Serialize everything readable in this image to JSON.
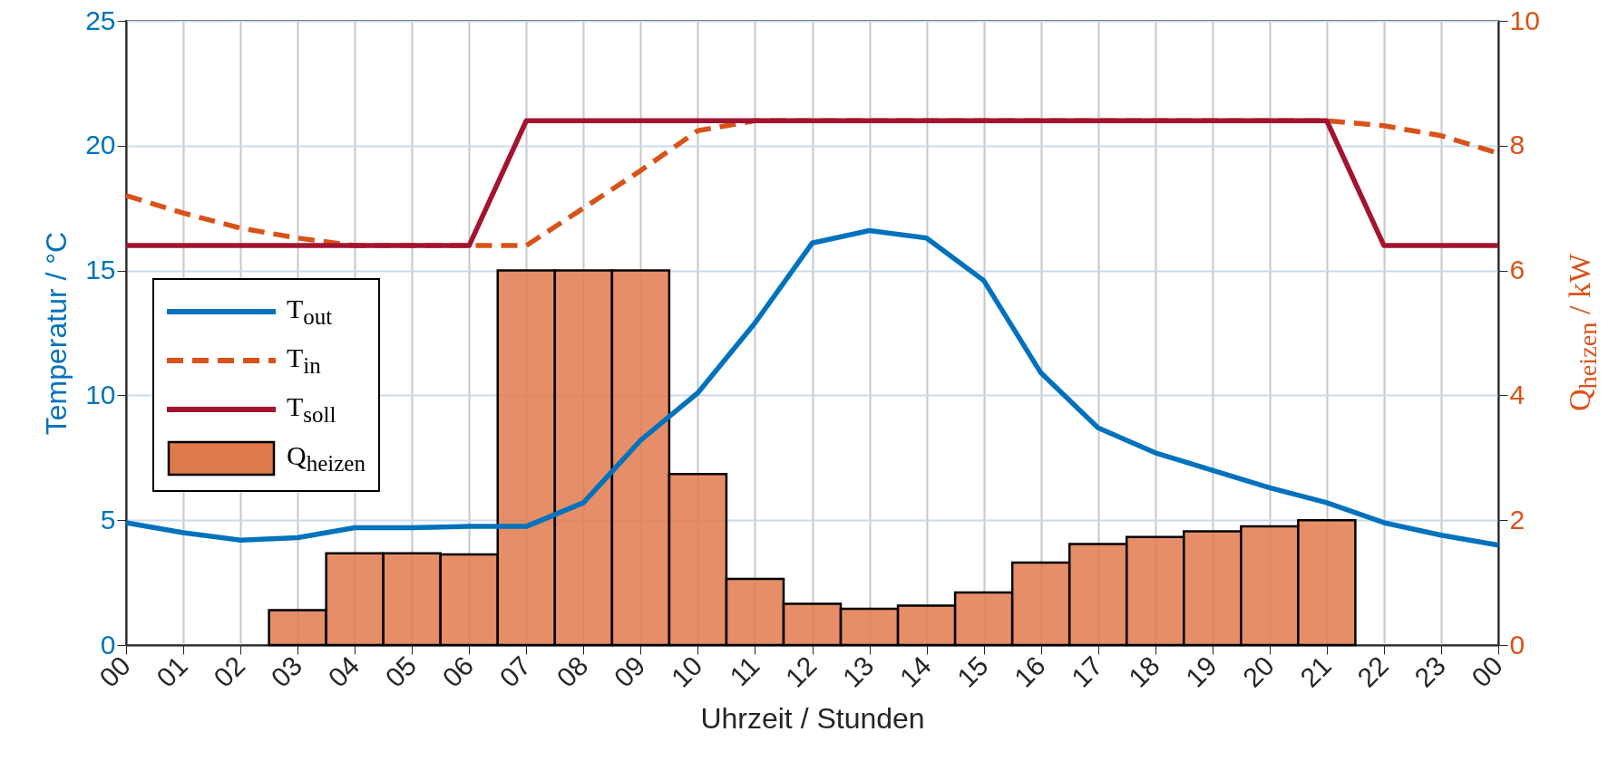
{
  "chart_data": {
    "type": "line",
    "xlabel": "Uhrzeit / Stunden",
    "ylabel": "Temperatur / °C",
    "y2label": "Q$_{heizen}$ / kW",
    "x": [
      0,
      1,
      2,
      3,
      4,
      5,
      6,
      7,
      8,
      9,
      10,
      11,
      12,
      13,
      14,
      15,
      16,
      17,
      18,
      19,
      20,
      21,
      22,
      23,
      24
    ],
    "xlim": [
      0,
      24
    ],
    "xticks": [
      {
        "value": 0,
        "label": "00"
      },
      {
        "value": 1,
        "label": "01"
      },
      {
        "value": 2,
        "label": "02"
      },
      {
        "value": 3,
        "label": "03"
      },
      {
        "value": 4,
        "label": "04"
      },
      {
        "value": 5,
        "label": "05"
      },
      {
        "value": 6,
        "label": "06"
      },
      {
        "value": 7,
        "label": "07"
      },
      {
        "value": 8,
        "label": "08"
      },
      {
        "value": 9,
        "label": "09"
      },
      {
        "value": 10,
        "label": "10"
      },
      {
        "value": 11,
        "label": "11"
      },
      {
        "value": 12,
        "label": "12"
      },
      {
        "value": 13,
        "label": "13"
      },
      {
        "value": 14,
        "label": "14"
      },
      {
        "value": 15,
        "label": "15"
      },
      {
        "value": 16,
        "label": "16"
      },
      {
        "value": 17,
        "label": "17"
      },
      {
        "value": 18,
        "label": "18"
      },
      {
        "value": 19,
        "label": "19"
      },
      {
        "value": 20,
        "label": "20"
      },
      {
        "value": 21,
        "label": "21"
      },
      {
        "value": 22,
        "label": "22"
      },
      {
        "value": 23,
        "label": "23"
      },
      {
        "value": 24,
        "label": "00"
      }
    ],
    "ylim": [
      0,
      25
    ],
    "yticks": [
      0,
      5,
      10,
      15,
      20,
      25
    ],
    "y2lim": [
      0,
      10
    ],
    "y2ticks": [
      0,
      2,
      4,
      6,
      8,
      10
    ],
    "grid": true,
    "legend": "left",
    "series": [
      {
        "name": "T$_{out}$",
        "color": "#0072bd",
        "values": [
          4.9,
          4.5,
          4.2,
          4.3,
          4.7,
          4.7,
          4.75,
          4.75,
          5.7,
          8.2,
          10.1,
          12.9,
          16.1,
          16.6,
          16.3,
          14.6,
          10.9,
          8.7,
          7.7,
          7.0,
          6.3,
          5.7,
          4.9,
          4.4,
          4.0
        ]
      },
      {
        "name": "T$_{in}$",
        "color": "#d95319",
        "line_style": "dashed",
        "values": [
          18.0,
          17.3,
          16.7,
          16.3,
          16.0,
          16.0,
          16.0,
          16.0,
          17.5,
          19.0,
          20.6,
          21.0,
          21.0,
          21.0,
          21.0,
          21.0,
          21.0,
          21.0,
          21.0,
          21.0,
          21.0,
          21.0,
          20.8,
          20.4,
          19.7
        ]
      },
      {
        "name": "T$_{soll}$",
        "color": "#a2142f",
        "values": [
          16,
          16,
          16,
          16,
          16,
          16,
          16,
          21,
          21,
          21,
          21,
          21,
          21,
          21,
          21,
          21,
          21,
          21,
          21,
          21,
          21,
          21,
          16,
          16,
          16
        ]
      },
      {
        "name": "Q$_{heizen}$",
        "type": "bar",
        "axis": "y2",
        "color": "#e07a4c",
        "x": [
          3,
          4,
          5,
          6,
          7,
          8,
          9,
          10,
          11,
          12,
          13,
          14,
          15,
          16,
          17,
          18,
          19,
          20,
          21
        ],
        "values": [
          0.56,
          1.47,
          1.47,
          1.45,
          6.0,
          6.0,
          6.0,
          2.74,
          1.06,
          0.66,
          0.58,
          0.63,
          0.84,
          1.32,
          1.62,
          1.73,
          1.82,
          1.9,
          2.0
        ]
      }
    ]
  }
}
